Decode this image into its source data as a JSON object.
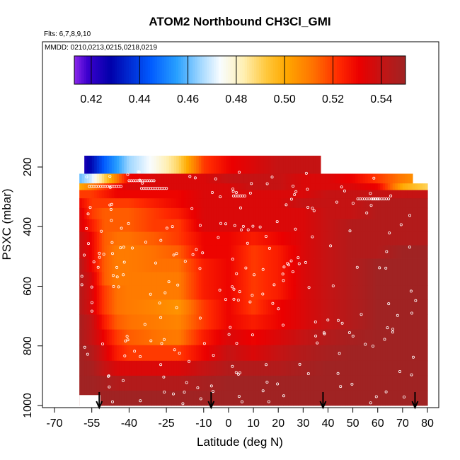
{
  "chart_data": {
    "type": "heatmap",
    "title": "ATOM2 Northbound CH3Cl_GMI",
    "subtitle_flights": "Flts: 6,7,8,9,10",
    "subtitle_dates": "MMDD: 0210,0213,0215,0218,0219",
    "xlabel": "Latitude (deg N)",
    "ylabel": "PSXC (mbar)",
    "xlim": [
      -70,
      80
    ],
    "ylim": [
      1000,
      100
    ],
    "x_ticks": [
      "-70",
      "-55",
      "-40",
      "-25",
      "-10",
      "0",
      "10",
      "20",
      "30",
      "40",
      "50",
      "60",
      "70",
      "80"
    ],
    "y_ticks": [
      "200",
      "400",
      "600",
      "800",
      "1000"
    ],
    "colorbar": {
      "range": [
        0.413,
        0.55
      ],
      "ticks": [
        "0.42",
        "0.44",
        "0.46",
        "0.48",
        "0.50",
        "0.52",
        "0.54"
      ]
    },
    "pressure_levels": [
      200,
      245,
      265,
      290,
      320,
      355,
      395,
      440,
      485,
      530,
      575,
      620,
      670,
      720,
      770,
      825,
      875,
      925,
      975
    ],
    "latitude_nodes": [
      -60,
      -55,
      -50,
      -45,
      -40,
      -30,
      -20,
      -10,
      0,
      10,
      20,
      30,
      40,
      50,
      60,
      70,
      80
    ],
    "lat_bounds_by_level": [
      [
        -58,
        37
      ],
      [
        -60,
        74
      ],
      [
        -60,
        80
      ],
      [
        -60,
        80
      ],
      [
        -60,
        80
      ],
      [
        -60,
        80
      ],
      [
        -60,
        80
      ],
      [
        -60,
        80
      ],
      [
        -60,
        80
      ],
      [
        -60,
        80
      ],
      [
        -60,
        80
      ],
      [
        -60,
        80
      ],
      [
        -60,
        80
      ],
      [
        -60,
        80
      ],
      [
        -60,
        80
      ],
      [
        -60,
        80
      ],
      [
        -60,
        80
      ],
      [
        -60,
        80
      ],
      [
        -60,
        80
      ]
    ],
    "values": [
      [
        0.42,
        0.43,
        0.445,
        0.455,
        0.465,
        0.475,
        0.49,
        0.52,
        0.53,
        0.535,
        0.54,
        0.54,
        0.54,
        0.54,
        0.54,
        0.54,
        0.54
      ],
      [
        0.46,
        0.47,
        0.49,
        0.51,
        0.53,
        0.535,
        0.535,
        0.535,
        0.54,
        0.54,
        0.54,
        0.535,
        0.535,
        0.53,
        0.52,
        0.51,
        0.5
      ],
      [
        0.5,
        0.51,
        0.52,
        0.53,
        0.535,
        0.535,
        0.535,
        0.535,
        0.535,
        0.54,
        0.54,
        0.535,
        0.535,
        0.535,
        0.53,
        0.5,
        0.49
      ],
      [
        0.52,
        0.52,
        0.525,
        0.53,
        0.53,
        0.53,
        0.53,
        0.535,
        0.535,
        0.535,
        0.535,
        0.535,
        0.54,
        0.54,
        0.54,
        0.54,
        0.54
      ],
      [
        0.53,
        0.52,
        0.52,
        0.52,
        0.52,
        0.525,
        0.53,
        0.535,
        0.535,
        0.535,
        0.535,
        0.54,
        0.54,
        0.54,
        0.545,
        0.545,
        0.545
      ],
      [
        0.535,
        0.52,
        0.515,
        0.515,
        0.515,
        0.52,
        0.525,
        0.535,
        0.535,
        0.535,
        0.535,
        0.535,
        0.54,
        0.54,
        0.545,
        0.545,
        0.545
      ],
      [
        0.535,
        0.525,
        0.515,
        0.515,
        0.515,
        0.52,
        0.52,
        0.535,
        0.535,
        0.535,
        0.535,
        0.535,
        0.54,
        0.545,
        0.545,
        0.545,
        0.545
      ],
      [
        0.54,
        0.53,
        0.515,
        0.512,
        0.512,
        0.515,
        0.52,
        0.53,
        0.53,
        0.525,
        0.53,
        0.535,
        0.54,
        0.545,
        0.545,
        0.545,
        0.545
      ],
      [
        0.54,
        0.53,
        0.515,
        0.51,
        0.51,
        0.512,
        0.515,
        0.53,
        0.53,
        0.52,
        0.525,
        0.535,
        0.54,
        0.545,
        0.545,
        0.55,
        0.55
      ],
      [
        0.545,
        0.53,
        0.515,
        0.51,
        0.51,
        0.512,
        0.512,
        0.525,
        0.53,
        0.52,
        0.525,
        0.535,
        0.54,
        0.545,
        0.55,
        0.55,
        0.55
      ],
      [
        0.545,
        0.535,
        0.515,
        0.51,
        0.51,
        0.51,
        0.51,
        0.525,
        0.53,
        0.52,
        0.525,
        0.535,
        0.54,
        0.545,
        0.55,
        0.55,
        0.55
      ],
      [
        0.545,
        0.535,
        0.52,
        0.512,
        0.51,
        0.51,
        0.51,
        0.525,
        0.53,
        0.52,
        0.525,
        0.535,
        0.54,
        0.545,
        0.55,
        0.55,
        0.55
      ],
      [
        0.545,
        0.535,
        0.52,
        0.512,
        0.51,
        0.508,
        0.505,
        0.52,
        0.53,
        0.52,
        0.53,
        0.535,
        0.54,
        0.545,
        0.55,
        0.55,
        0.55
      ],
      [
        0.548,
        0.54,
        0.525,
        0.515,
        0.512,
        0.51,
        0.508,
        0.52,
        0.53,
        0.525,
        0.53,
        0.535,
        0.54,
        0.545,
        0.55,
        0.55,
        0.55
      ],
      [
        0.548,
        0.54,
        0.53,
        0.52,
        0.515,
        0.512,
        0.51,
        0.525,
        0.535,
        0.53,
        0.535,
        0.54,
        0.545,
        0.548,
        0.55,
        0.55,
        0.55
      ],
      [
        0.55,
        0.545,
        0.535,
        0.525,
        0.52,
        0.52,
        0.52,
        0.53,
        0.54,
        0.535,
        0.54,
        0.545,
        0.548,
        0.55,
        0.55,
        0.55,
        0.55
      ],
      [
        0.55,
        0.548,
        0.54,
        0.535,
        0.535,
        0.535,
        0.535,
        0.54,
        0.545,
        0.545,
        0.545,
        0.548,
        0.55,
        0.55,
        0.55,
        0.55,
        0.55
      ],
      [
        0.55,
        0.55,
        0.548,
        0.545,
        0.545,
        0.545,
        0.545,
        0.548,
        0.55,
        0.55,
        0.55,
        0.55,
        0.55,
        0.55,
        0.55,
        0.55,
        0.55
      ],
      [
        0.55,
        0.55,
        0.55,
        0.55,
        0.55,
        0.55,
        0.55,
        0.55,
        0.55,
        0.55,
        0.55,
        0.55,
        0.55,
        0.55,
        0.55,
        0.55,
        0.55
      ]
    ],
    "profile_arrow_latitudes": [
      -52,
      -7,
      38,
      75
    ],
    "legend_placement": "top (horizontal colorbar)",
    "grid": false
  }
}
